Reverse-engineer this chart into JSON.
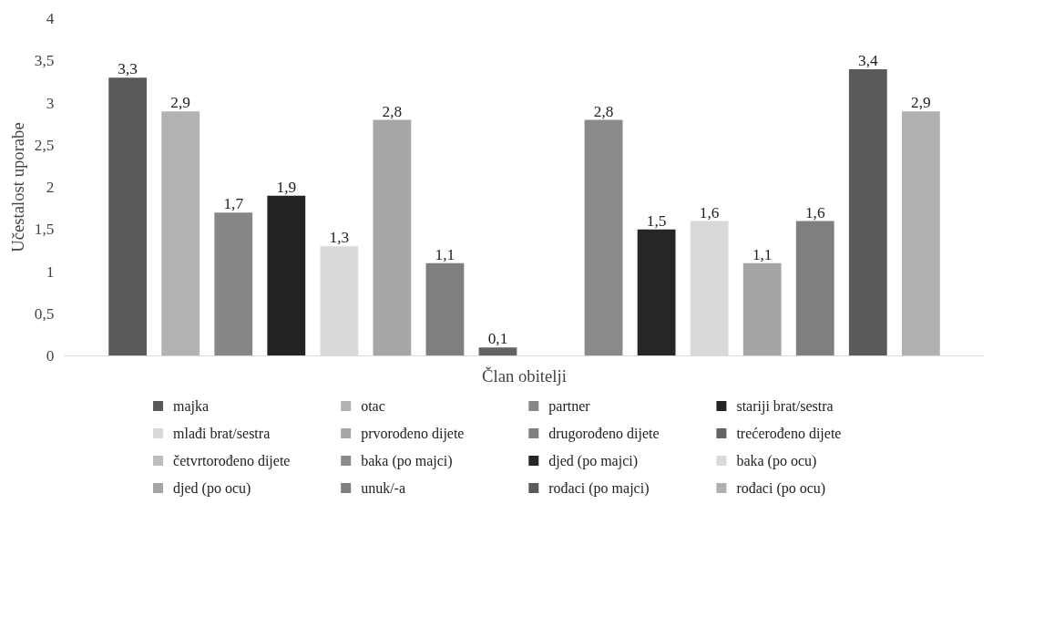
{
  "chart_data": {
    "type": "bar",
    "categories": [
      null
    ],
    "xlabel": "Član obitelji",
    "ylabel": "Učestalost uporabe",
    "ylim": [
      0,
      4
    ],
    "yticks": [
      0,
      {
        "value": 0.5,
        "label": "0,5"
      },
      1,
      {
        "value": 1.5,
        "label": "1,5"
      },
      2,
      {
        "value": 2.5,
        "label": "2,5"
      },
      3,
      {
        "value": 3.5,
        "label": "3,5"
      },
      4
    ],
    "legend": "bottom",
    "grid": false,
    "series": [
      {
        "name": "majka",
        "color": "#595959",
        "values": [
          3.3
        ],
        "value_labels": [
          "3,3"
        ]
      },
      {
        "name": "otac",
        "color": "#b2b2b2",
        "values": [
          2.9
        ],
        "value_labels": [
          "2,9"
        ]
      },
      {
        "name": "partner",
        "color": "#878787",
        "values": [
          1.7
        ],
        "value_labels": [
          "1,7"
        ]
      },
      {
        "name": "stariji brat/sestra",
        "color": "#232323",
        "values": [
          1.9
        ],
        "value_labels": [
          "1,9"
        ]
      },
      {
        "name": "mlađi brat/sestra",
        "color": "#d9d9d9",
        "values": [
          1.3
        ],
        "value_labels": [
          "1,3"
        ]
      },
      {
        "name": "prvorođeno dijete",
        "color": "#a6a6a6",
        "values": [
          2.8
        ],
        "value_labels": [
          "2,8"
        ]
      },
      {
        "name": "drugorođeno dijete",
        "color": "#7f7f7f",
        "values": [
          1.1
        ],
        "value_labels": [
          "1,1"
        ]
      },
      {
        "name": "trećerođeno dijete",
        "color": "#636363",
        "values": [
          0.1
        ],
        "value_labels": [
          "0,1"
        ]
      },
      {
        "name": "četvrtorođeno dijete",
        "color": "#bdbdbd",
        "values": [
          null
        ],
        "value_labels": [
          null
        ]
      },
      {
        "name": "baka (po majci)",
        "color": "#8a8a8a",
        "values": [
          2.8
        ],
        "value_labels": [
          "2,8"
        ]
      },
      {
        "name": "djed (po majci)",
        "color": "#262626",
        "values": [
          1.5
        ],
        "value_labels": [
          "1,5"
        ]
      },
      {
        "name": "baka (po ocu)",
        "color": "#d9d9d9",
        "values": [
          1.6
        ],
        "value_labels": [
          "1,6"
        ]
      },
      {
        "name": "djed (po ocu)",
        "color": "#a5a5a5",
        "values": [
          1.1
        ],
        "value_labels": [
          "1,1"
        ]
      },
      {
        "name": "unuk/-a",
        "color": "#7f7f7f",
        "values": [
          1.6
        ],
        "value_labels": [
          "1,6"
        ]
      },
      {
        "name": "rođaci (po majci)",
        "color": "#5a5a5a",
        "values": [
          3.4
        ],
        "value_labels": [
          "3,4"
        ]
      },
      {
        "name": "rođaci (po ocu)",
        "color": "#b0b0b0",
        "values": [
          2.9
        ],
        "value_labels": [
          "2,9"
        ]
      }
    ]
  }
}
